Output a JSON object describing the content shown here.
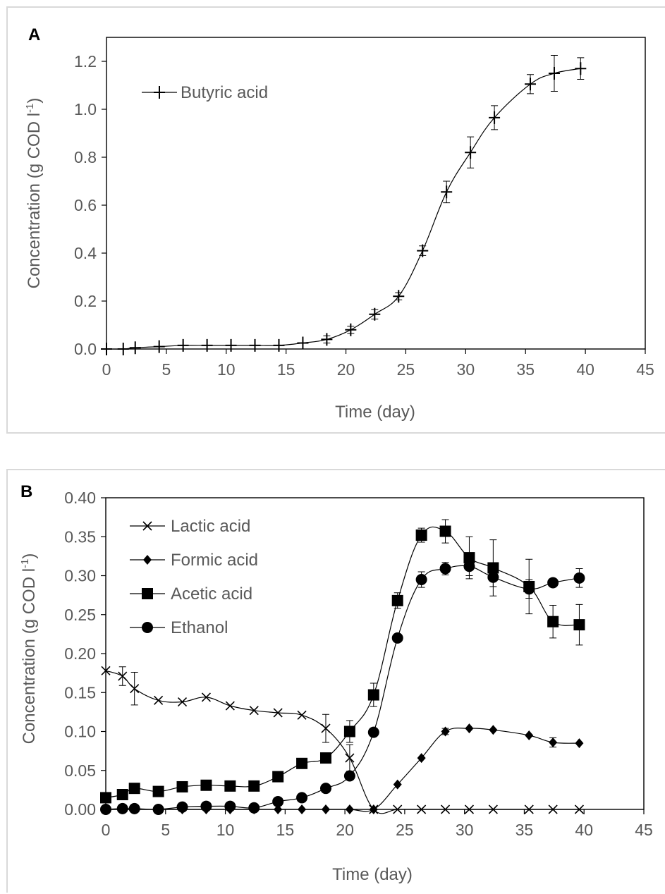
{
  "chart_data": [
    {
      "type": "line",
      "panel_label": "A",
      "xlabel": "Time (day)",
      "ylabel": "Concentration (g COD l",
      "ylabel_sup": "-1",
      "ylabel_end": ")",
      "xlim": [
        0,
        45
      ],
      "ylim": [
        0,
        1.3
      ],
      "x_ticks": [
        "0",
        "5",
        "10",
        "15",
        "20",
        "25",
        "30",
        "35",
        "40",
        "45"
      ],
      "y_ticks": [
        "0.0",
        "0.2",
        "0.4",
        "0.6",
        "0.8",
        "1.0",
        "1.2"
      ],
      "grid": false,
      "legend_position": "top-left",
      "series": [
        {
          "name": "Butyric acid",
          "marker": "plus",
          "x": [
            0,
            1.4,
            2.4,
            4.4,
            6.4,
            8.4,
            10.4,
            12.4,
            14.4,
            16.4,
            18.4,
            20.4,
            22.4,
            24.4,
            26.4,
            28.4,
            30.4,
            32.4,
            35.4,
            37.4,
            39.6
          ],
          "y": [
            0.0,
            0.0,
            0.005,
            0.01,
            0.015,
            0.015,
            0.015,
            0.015,
            0.015,
            0.025,
            0.04,
            0.08,
            0.145,
            0.22,
            0.41,
            0.655,
            0.82,
            0.965,
            1.105,
            1.15,
            1.17
          ],
          "err": [
            0,
            0,
            0,
            0,
            0,
            0,
            0,
            0,
            0,
            0,
            0.015,
            0.015,
            0.02,
            0.015,
            0.02,
            0.045,
            0.065,
            0.05,
            0.04,
            0.075,
            0.045
          ]
        }
      ]
    },
    {
      "type": "line",
      "panel_label": "B",
      "xlabel": "Time (day)",
      "ylabel": "Concentration (g COD l",
      "ylabel_sup": "-1",
      "ylabel_end": ")",
      "xlim": [
        0,
        45
      ],
      "ylim": [
        0,
        0.4
      ],
      "x_ticks": [
        "0",
        "5",
        "10",
        "15",
        "20",
        "25",
        "30",
        "35",
        "40",
        "45"
      ],
      "y_ticks": [
        "0.00",
        "0.05",
        "0.10",
        "0.15",
        "0.20",
        "0.25",
        "0.30",
        "0.35",
        "0.40"
      ],
      "grid": false,
      "legend_position": "top-left",
      "series": [
        {
          "name": "Lactic acid",
          "marker": "x",
          "x": [
            0,
            1.4,
            2.4,
            4.4,
            6.4,
            8.4,
            10.4,
            12.4,
            14.4,
            16.4,
            18.4,
            20.4,
            22.4,
            24.4,
            26.4,
            28.4,
            30.4,
            32.4,
            35.4,
            37.4,
            39.6
          ],
          "y": [
            0.178,
            0.171,
            0.155,
            0.14,
            0.138,
            0.144,
            0.133,
            0.127,
            0.124,
            0.121,
            0.104,
            0.066,
            0.0,
            0.0,
            0.0,
            0.0,
            0.0,
            0.0,
            0.0,
            0.0,
            0.0
          ],
          "err": [
            0,
            0.012,
            0.021,
            0,
            0,
            0,
            0,
            0,
            0,
            0,
            0.018,
            0.017,
            0,
            0,
            0,
            0,
            0,
            0,
            0,
            0,
            0
          ]
        },
        {
          "name": "Formic acid",
          "marker": "diamond",
          "x": [
            0,
            1.4,
            2.4,
            4.4,
            6.4,
            8.4,
            10.4,
            12.4,
            14.4,
            16.4,
            18.4,
            20.4,
            22.4,
            24.4,
            26.4,
            28.4,
            30.4,
            32.4,
            35.4,
            37.4,
            39.6
          ],
          "y": [
            0.0,
            0.0,
            0.0,
            0.0,
            0.0,
            0.0,
            0.0,
            0.0,
            0.0,
            0.0,
            0.0,
            0.0,
            0.0,
            0.032,
            0.066,
            0.1,
            0.104,
            0.102,
            0.095,
            0.086,
            0.085
          ],
          "err": [
            0,
            0,
            0,
            0,
            0,
            0,
            0,
            0,
            0,
            0,
            0,
            0,
            0,
            0,
            0,
            0.004,
            0,
            0,
            0,
            0.006,
            0
          ]
        },
        {
          "name": "Acetic acid",
          "marker": "square",
          "x": [
            0,
            1.4,
            2.4,
            4.4,
            6.4,
            8.4,
            10.4,
            12.4,
            14.4,
            16.4,
            18.4,
            20.4,
            22.4,
            24.4,
            26.4,
            28.4,
            30.4,
            32.4,
            35.4,
            37.4,
            39.6
          ],
          "y": [
            0.015,
            0.019,
            0.027,
            0.023,
            0.029,
            0.031,
            0.03,
            0.03,
            0.042,
            0.059,
            0.066,
            0.1,
            0.147,
            0.268,
            0.352,
            0.357,
            0.323,
            0.31,
            0.286,
            0.241,
            0.237
          ],
          "err": [
            0,
            0,
            0,
            0,
            0,
            0,
            0,
            0,
            0,
            0,
            0,
            0.014,
            0.015,
            0.01,
            0.009,
            0.015,
            0.027,
            0.036,
            0.035,
            0.021,
            0.026
          ]
        },
        {
          "name": "Ethanol",
          "marker": "circle",
          "x": [
            0,
            1.4,
            2.4,
            4.4,
            6.4,
            8.4,
            10.4,
            12.4,
            14.4,
            16.4,
            18.4,
            20.4,
            22.4,
            24.4,
            26.4,
            28.4,
            30.4,
            32.4,
            35.4,
            37.4,
            39.6
          ],
          "y": [
            0.0,
            0.001,
            0.001,
            0.0,
            0.003,
            0.004,
            0.004,
            0.002,
            0.01,
            0.015,
            0.027,
            0.043,
            0.099,
            0.22,
            0.295,
            0.309,
            0.312,
            0.298,
            0.283,
            0.291,
            0.297
          ],
          "err": [
            0,
            0,
            0,
            0,
            0,
            0,
            0,
            0,
            0,
            0,
            0,
            0,
            0,
            0,
            0.01,
            0.008,
            0.012,
            0.012,
            0.012,
            0,
            0.012
          ]
        }
      ]
    }
  ]
}
